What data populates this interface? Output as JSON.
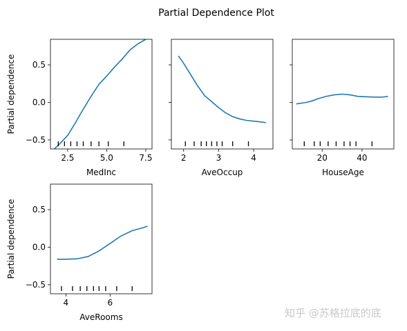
{
  "watermark": "知乎 @苏格拉底的底",
  "chart_data": {
    "type": "line",
    "title": "Partial Dependence Plot",
    "ylabel": "Partial dependence",
    "ylim": [
      -0.62,
      0.84
    ],
    "yticks": [
      -0.5,
      0.0,
      0.5
    ],
    "ytick_labels": [
      "−0.5",
      "0.0",
      "0.5"
    ],
    "line_color": "#1f77b4",
    "grid": false,
    "panels": [
      {
        "xlabel": "MedInc",
        "xlim": [
          1.4,
          7.9
        ],
        "xticks": [
          2.5,
          5.0,
          7.5
        ],
        "xtick_labels": [
          "2.5",
          "5.0",
          "7.5"
        ],
        "deciles": [
          1.9,
          2.3,
          2.7,
          3.1,
          3.5,
          4.0,
          4.5,
          5.1,
          6.1
        ],
        "x": [
          1.5,
          2.0,
          2.5,
          3.0,
          3.5,
          4.0,
          4.5,
          5.0,
          5.5,
          6.0,
          6.5,
          7.0,
          7.5
        ],
        "y": [
          -0.65,
          -0.55,
          -0.44,
          -0.27,
          -0.09,
          0.08,
          0.24,
          0.35,
          0.47,
          0.58,
          0.7,
          0.78,
          0.84
        ]
      },
      {
        "xlabel": "AveOccup",
        "xlim": [
          1.65,
          4.55
        ],
        "xticks": [
          2,
          3,
          4
        ],
        "xtick_labels": [
          "2",
          "3",
          "4"
        ],
        "deciles": [
          2.05,
          2.3,
          2.5,
          2.65,
          2.8,
          2.95,
          3.1,
          3.4,
          3.85
        ],
        "x": [
          1.85,
          2.0,
          2.2,
          2.4,
          2.6,
          2.8,
          3.0,
          3.2,
          3.4,
          3.6,
          3.8,
          4.0,
          4.2,
          4.35
        ],
        "y": [
          0.62,
          0.52,
          0.37,
          0.22,
          0.09,
          0.01,
          -0.07,
          -0.14,
          -0.19,
          -0.22,
          -0.24,
          -0.25,
          -0.26,
          -0.27
        ]
      },
      {
        "xlabel": "HouseAge",
        "xlim": [
          5,
          56
        ],
        "xticks": [
          20,
          40
        ],
        "xtick_labels": [
          "20",
          "40"
        ],
        "deciles": [
          11,
          16,
          19,
          23,
          27,
          31,
          34,
          37,
          45
        ],
        "x": [
          7,
          12,
          15,
          18,
          22,
          26,
          30,
          34,
          38,
          42,
          46,
          50,
          53
        ],
        "y": [
          -0.02,
          0.0,
          0.02,
          0.05,
          0.08,
          0.1,
          0.11,
          0.1,
          0.08,
          0.075,
          0.07,
          0.07,
          0.08
        ]
      },
      {
        "xlabel": "AveRooms",
        "xlim": [
          3.3,
          7.9
        ],
        "xticks": [
          4,
          6
        ],
        "xtick_labels": [
          "4",
          "6"
        ],
        "deciles": [
          3.8,
          4.3,
          4.65,
          4.95,
          5.25,
          5.5,
          5.8,
          6.3,
          7.0
        ],
        "x": [
          3.6,
          4.0,
          4.5,
          5.0,
          5.5,
          6.0,
          6.5,
          7.0,
          7.5,
          7.7
        ],
        "y": [
          -0.16,
          -0.16,
          -0.155,
          -0.125,
          -0.05,
          0.05,
          0.15,
          0.22,
          0.26,
          0.28
        ]
      }
    ]
  }
}
